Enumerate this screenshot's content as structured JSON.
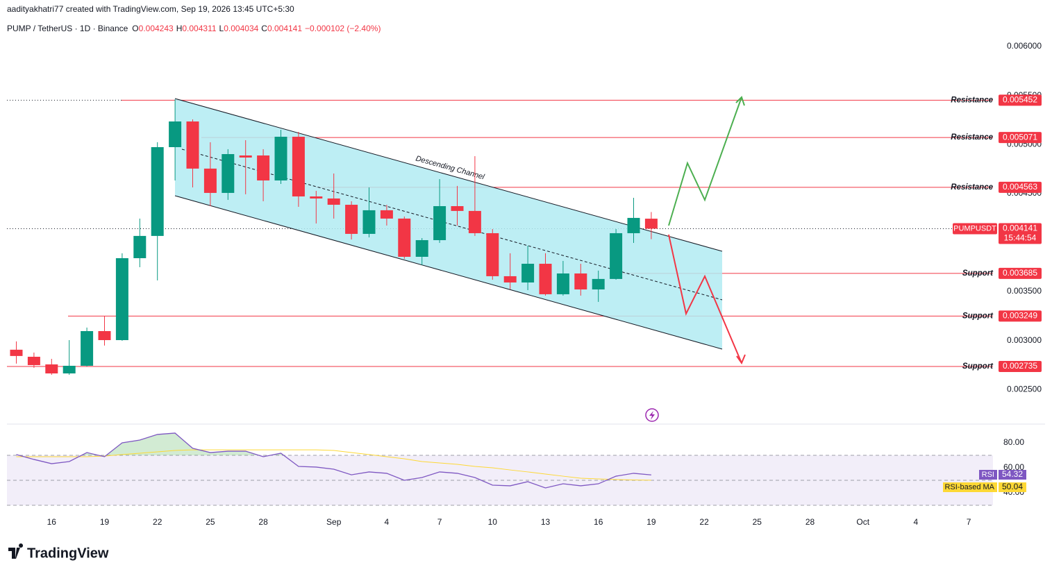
{
  "header": {
    "credit": "aadityakhatri77 created with TradingView.com, Sep 19, 2026 13:45 UTC+5:30"
  },
  "footer": {
    "logo": "TradingView"
  },
  "chart_data": [
    {
      "type": "candlestick",
      "symbol": "PUMP / TetherUS · 1D · Binance",
      "ohlc_labels": [
        "O",
        "H",
        "L",
        "C"
      ],
      "change": "−0.000102 (−2.40%)",
      "up_color": "#089981",
      "down_color": "#f23645",
      "x": [
        "2026-08-14",
        "2026-08-15",
        "2026-08-16",
        "2026-08-17",
        "2026-08-18",
        "2026-08-19",
        "2026-08-20",
        "2026-08-21",
        "2026-08-22",
        "2026-08-23",
        "2026-08-24",
        "2026-08-25",
        "2026-08-26",
        "2026-08-27",
        "2026-08-28",
        "2026-08-29",
        "2026-08-30",
        "2026-08-31",
        "2026-09-01",
        "2026-09-02",
        "2026-09-03",
        "2026-09-04",
        "2026-09-05",
        "2026-09-06",
        "2026-09-07",
        "2026-09-08",
        "2026-09-09",
        "2026-09-10",
        "2026-09-11",
        "2026-09-12",
        "2026-09-13",
        "2026-09-14",
        "2026-09-15",
        "2026-09-16",
        "2026-09-17",
        "2026-09-18",
        "2026-09-19"
      ],
      "open": [
        0.002906,
        0.002834,
        0.002756,
        0.002664,
        0.002742,
        0.003096,
        0.003004,
        0.00384,
        0.004067,
        0.004973,
        0.005235,
        0.004754,
        0.004506,
        0.004888,
        0.004888,
        0.004633,
        0.005079,
        0.00447,
        0.004449,
        0.004385,
        0.004088,
        0.004329,
        0.004244,
        0.003854,
        0.004024,
        0.004371,
        0.004322,
        0.004095,
        0.003656,
        0.003592,
        0.003783,
        0.003472,
        0.003684,
        0.003521,
        0.003628,
        0.004095,
        0.004243
      ],
      "high": [
        0.002991,
        0.002877,
        0.002813,
        0.003004,
        0.003132,
        0.003252,
        0.00389,
        0.004244,
        0.005023,
        0.00546,
        0.005256,
        0.005023,
        0.004952,
        0.005044,
        0.004952,
        0.00515,
        0.005129,
        0.004527,
        0.004704,
        0.004421,
        0.004562,
        0.004385,
        0.004265,
        0.004045,
        0.004647,
        0.004577,
        0.004881,
        0.004137,
        0.00389,
        0.003967,
        0.00389,
        0.003812,
        0.003783,
        0.003713,
        0.004137,
        0.004456,
        0.004311
      ],
      "low": [
        0.002764,
        0.002721,
        0.00265,
        0.00265,
        0.002735,
        0.002948,
        0.002997,
        0.003748,
        0.003613,
        0.004633,
        0.004562,
        0.004371,
        0.004435,
        0.004492,
        0.004421,
        0.004598,
        0.004364,
        0.004194,
        0.004244,
        0.004031,
        0.004052,
        0.004173,
        0.003833,
        0.003769,
        0.003996,
        0.004173,
        0.004067,
        0.00362,
        0.003521,
        0.003514,
        0.003458,
        0.003458,
        0.003458,
        0.003394,
        0.00362,
        0.003996,
        0.004034
      ],
      "close": [
        0.002842,
        0.002749,
        0.002664,
        0.002742,
        0.003096,
        0.003004,
        0.00384,
        0.004067,
        0.004973,
        0.005235,
        0.004754,
        0.004506,
        0.004902,
        0.004867,
        0.004633,
        0.005079,
        0.00447,
        0.004449,
        0.004385,
        0.004088,
        0.004329,
        0.004244,
        0.003854,
        0.004024,
        0.004371,
        0.004322,
        0.004095,
        0.003656,
        0.003592,
        0.003783,
        0.003472,
        0.003684,
        0.003521,
        0.003628,
        0.004095,
        0.004251,
        0.004141
      ],
      "ylim": [
        0.00215,
        0.0064
      ],
      "yticks": [
        {
          "value": 0.006,
          "label": "0.006000"
        },
        {
          "value": 0.0055,
          "label": "0.005500"
        },
        {
          "value": 0.005,
          "label": "0.005000"
        },
        {
          "value": 0.0045,
          "label": "0.004500"
        },
        {
          "value": 0.0035,
          "label": "0.003500"
        },
        {
          "value": 0.003,
          "label": "0.003000"
        },
        {
          "value": 0.0025,
          "label": "0.002500"
        }
      ],
      "xticks": [
        {
          "value": "2026-08-16",
          "label": "16"
        },
        {
          "value": "2026-08-19",
          "label": "19"
        },
        {
          "value": "2026-08-22",
          "label": "22"
        },
        {
          "value": "2026-08-25",
          "label": "25"
        },
        {
          "value": "2026-08-28",
          "label": "28"
        },
        {
          "value": "2026-09-01",
          "label": "Sep"
        },
        {
          "value": "2026-09-04",
          "label": "4"
        },
        {
          "value": "2026-09-07",
          "label": "7"
        },
        {
          "value": "2026-09-10",
          "label": "10"
        },
        {
          "value": "2026-09-13",
          "label": "13"
        },
        {
          "value": "2026-09-16",
          "label": "16"
        },
        {
          "value": "2026-09-19",
          "label": "19"
        },
        {
          "value": "2026-09-22",
          "label": "22"
        },
        {
          "value": "2026-09-25",
          "label": "25"
        },
        {
          "value": "2026-09-28",
          "label": "28"
        },
        {
          "value": "2026-10-01",
          "label": "Oct"
        },
        {
          "value": "2026-10-04",
          "label": "4"
        },
        {
          "value": "2026-10-07",
          "label": "7"
        }
      ],
      "levels": [
        {
          "label": "Resistance",
          "value": 0.005452
        },
        {
          "label": "Resistance",
          "value": 0.005071
        },
        {
          "label": "Resistance",
          "value": 0.004563
        },
        {
          "label": "Support",
          "value": 0.003685
        },
        {
          "label": "Support",
          "value": 0.003249
        },
        {
          "label": "Support",
          "value": 0.002735
        }
      ],
      "level_color": "#f23645",
      "price_label": "PUMPUSDT",
      "countdown": "15:44:54",
      "annotation": "Descending Channel"
    },
    {
      "type": "line",
      "ylim": [
        26,
        94
      ],
      "yticks": [
        {
          "value": 80,
          "label": "80.00"
        },
        {
          "value": 60,
          "label": "60.00"
        },
        {
          "value": 40,
          "label": "40.00"
        }
      ],
      "bands": [
        70,
        50,
        30
      ],
      "series": [
        {
          "name": "RSI",
          "color": "#7e57c2",
          "values": [
            70.6,
            66.7,
            63.3,
            65,
            72.2,
            68.9,
            80,
            82.2,
            86.7,
            87.8,
            75.6,
            72.2,
            73.3,
            73.3,
            68.9,
            71.7,
            61.1,
            60.6,
            58.9,
            54.4,
            56.7,
            55.6,
            50,
            52.2,
            56.7,
            55.6,
            52.2,
            46.1,
            45.6,
            48.9,
            43.9,
            47.2,
            45.6,
            47.2,
            53.3,
            55.6,
            54.32
          ]
        },
        {
          "name": "RSI-based MA",
          "color": "#fdd835",
          "values": [
            68.9,
            68.9,
            68.9,
            68.9,
            68.9,
            69.4,
            70.6,
            71.7,
            72.8,
            73.9,
            74.4,
            74.4,
            74.4,
            74.4,
            74.4,
            74.4,
            74.4,
            74.4,
            73.9,
            72.2,
            70.6,
            68.9,
            67.2,
            65,
            63.9,
            62.8,
            61.1,
            60,
            58.3,
            56.7,
            55,
            53.3,
            51.7,
            51.1,
            50.6,
            50.3,
            50.04
          ]
        }
      ]
    }
  ]
}
